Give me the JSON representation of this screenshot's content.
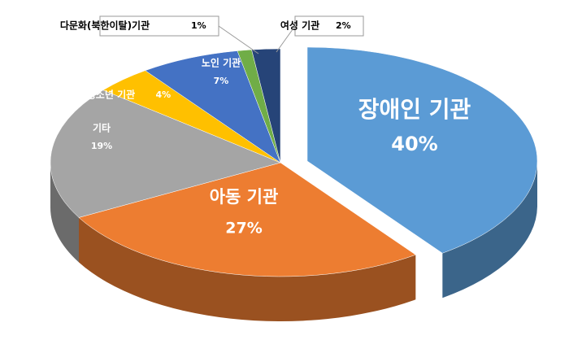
{
  "chart_data": {
    "type": "pie",
    "categories": [
      "장애인 기관",
      "아동 기관",
      "기타",
      "청소년 기관",
      "노인 기관",
      "다문화(북한이탈)기관",
      "여성 기관"
    ],
    "values": [
      40,
      27,
      19,
      4,
      7,
      1,
      2
    ],
    "value_labels": [
      "40%",
      "27%",
      "19%",
      "4%",
      "7%",
      "1%",
      "2%"
    ],
    "colors": [
      "#5b9bd5",
      "#ed7d31",
      "#a5a5a5",
      "#ffc000",
      "#4472c4",
      "#70ad47",
      "#264478"
    ],
    "exploded": [
      0
    ]
  }
}
